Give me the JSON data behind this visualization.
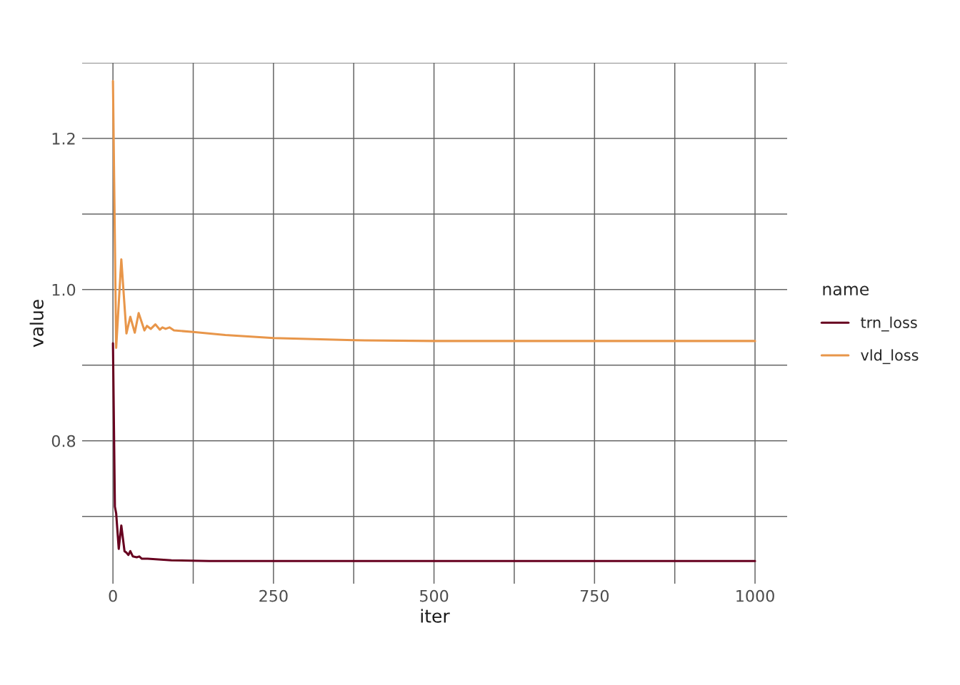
{
  "chart_data": {
    "type": "line",
    "xlabel": "iter",
    "ylabel": "value",
    "legend_title": "name",
    "legend": "right",
    "grid": true,
    "line_style": "solid",
    "xlim": [
      -48,
      1050
    ],
    "ylim": [
      0.611,
      1.3
    ],
    "xticks": [
      0,
      {
        "value": 125,
        "label": null
      },
      250,
      {
        "value": 375,
        "label": null
      },
      500,
      {
        "value": 625,
        "label": null
      },
      750,
      {
        "value": 875,
        "label": null
      },
      1000
    ],
    "yticks": [
      {
        "value": 0.7,
        "label": null
      },
      0.8,
      {
        "value": 0.9,
        "label": null
      },
      {
        "value": 1.0,
        "label": "1.0"
      },
      {
        "value": 1.1,
        "label": null
      },
      1.2,
      {
        "value": 1.3,
        "label": null
      }
    ],
    "series": [
      {
        "name": "trn_loss",
        "color": "#67001f",
        "x": [
          0,
          3,
          5,
          9,
          13,
          18,
          21,
          24,
          27,
          31,
          37,
          41,
          45,
          54,
          91,
          150,
          250,
          500,
          1000
        ],
        "values": [
          0.929,
          0.713,
          0.704,
          0.657,
          0.688,
          0.654,
          0.652,
          0.649,
          0.654,
          0.647,
          0.646,
          0.647,
          0.644,
          0.644,
          0.642,
          0.641,
          0.641,
          0.641,
          0.641
        ]
      },
      {
        "name": "vld_loss",
        "color": "#e8964a",
        "x": [
          0,
          5,
          13,
          21,
          27,
          34,
          40,
          49,
          53,
          59,
          66,
          73,
          77,
          82,
          88,
          95,
          125,
          175,
          250,
          375,
          500,
          750,
          1000
        ],
        "values": [
          1.276,
          0.923,
          1.04,
          0.942,
          0.964,
          0.943,
          0.969,
          0.946,
          0.952,
          0.948,
          0.954,
          0.947,
          0.95,
          0.948,
          0.95,
          0.946,
          0.944,
          0.94,
          0.936,
          0.933,
          0.932,
          0.932,
          0.932
        ]
      }
    ]
  }
}
